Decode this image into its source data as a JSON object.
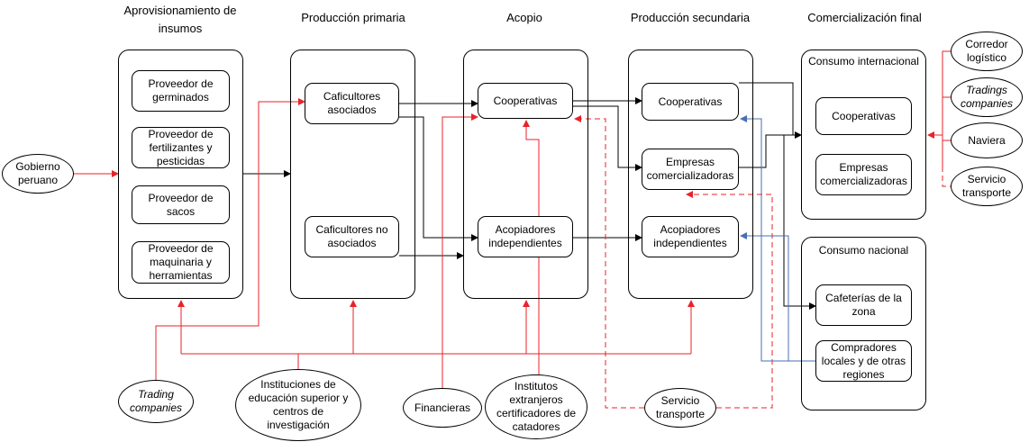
{
  "stages": [
    "Aprovisionamiento de insumos",
    "Producción primaria",
    "Acopio",
    "Producción secundaria",
    "Comercialización final"
  ],
  "supplies": [
    "Proveedor de germinados",
    "Proveedor de fertilizantes y pesticidas",
    "Proveedor de sacos",
    "Proveedor de maquinaria y herramientas"
  ],
  "primary": [
    "Caficultores asociados",
    "Caficultores no asociados"
  ],
  "collection": [
    "Cooperativas",
    "Acopiadores independientes"
  ],
  "secondary": [
    "Cooperativas",
    "Empresas comercializadoras",
    "Acopiadores independientes"
  ],
  "international": {
    "title": "Consumo internacional",
    "actors": [
      "Cooperativas",
      "Empresas comercializadoras"
    ]
  },
  "national": {
    "title": "Consumo nacional",
    "actors": [
      "Cafeterías de la zona",
      "Compradores locales y de otras regiones"
    ]
  },
  "external": [
    "Gobierno peruano",
    "Trading companies",
    "Instituciones de educación superior y centros de investigación",
    "Financieras",
    "Institutos extranjeros certificadores de catadores",
    "Servicio transporte"
  ],
  "logistics": [
    "Corredor logístico",
    "Tradings companies",
    "Naviera",
    "Servicio transporte"
  ]
}
